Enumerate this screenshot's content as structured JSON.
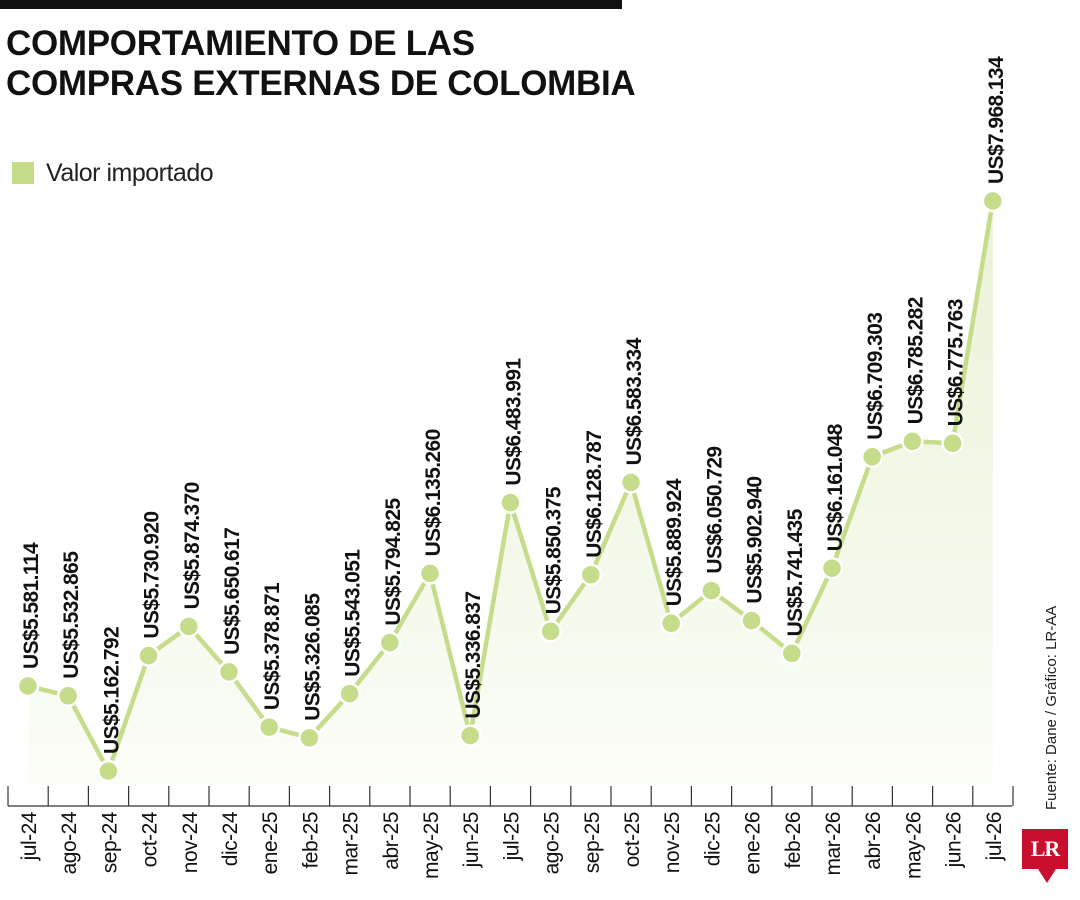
{
  "title_lines": [
    "COMPORTAMIENTO DE LAS",
    "COMPRAS EXTERNAS DE COLOMBIA"
  ],
  "legend_label": "Valor importado",
  "source": "Fuente: Dane / Gráfico: LR-AA",
  "logo": "LR",
  "colors": {
    "line": "#c5dc8b",
    "area_top": "#e9f2d7",
    "area_bottom": "#fbfdf7",
    "text": "#111111",
    "logo": "#c8102e"
  },
  "chart_data": {
    "type": "line",
    "title": "COMPORTAMIENTO DE LAS COMPRAS EXTERNAS DE COLOMBIA",
    "categories": [
      "jul-24",
      "ago-24",
      "sep-24",
      "oct-24",
      "nov-24",
      "dic-24",
      "ene-25",
      "feb-25",
      "mar-25",
      "abr-25",
      "may-25",
      "jun-25",
      "jul-25",
      "ago-25",
      "sep-25",
      "oct-25",
      "nov-25",
      "dic-25",
      "ene-26",
      "feb-26",
      "mar-26",
      "abr-26",
      "may-26",
      "jun-26",
      "jul-26"
    ],
    "series": [
      {
        "name": "Valor importado",
        "values": [
          5581114,
          5532865,
          5162792,
          5730920,
          5874370,
          5650617,
          5378871,
          5326085,
          5543051,
          5794825,
          6135260,
          5336837,
          6483991,
          5850375,
          6128787,
          6583334,
          5889924,
          6050729,
          5902940,
          5741435,
          6161048,
          6709303,
          6785282,
          6775763,
          7968134
        ]
      }
    ],
    "data_labels": [
      "US$5.581.114",
      "US$5.532.865",
      "US$5.162.792",
      "US$5.730.920",
      "US$5.874.370",
      "US$5.650.617",
      "US$5.378.871",
      "US$5.326.085",
      "US$5.543.051",
      "US$5.794.825",
      "US$6.135.260",
      "US$5.336.837",
      "US$6.483.991",
      "US$5.850.375",
      "US$6.128.787",
      "US$6.583.334",
      "US$5.889.924",
      "US$6.050.729",
      "US$5.902.940",
      "US$5.741.435",
      "US$6.161.048",
      "US$6.709.303",
      "US$6.785.282",
      "US$6.775.763",
      "US$7.968.134"
    ],
    "xlabel": "",
    "ylabel": "",
    "grid": false,
    "legend_position": "top-left"
  }
}
